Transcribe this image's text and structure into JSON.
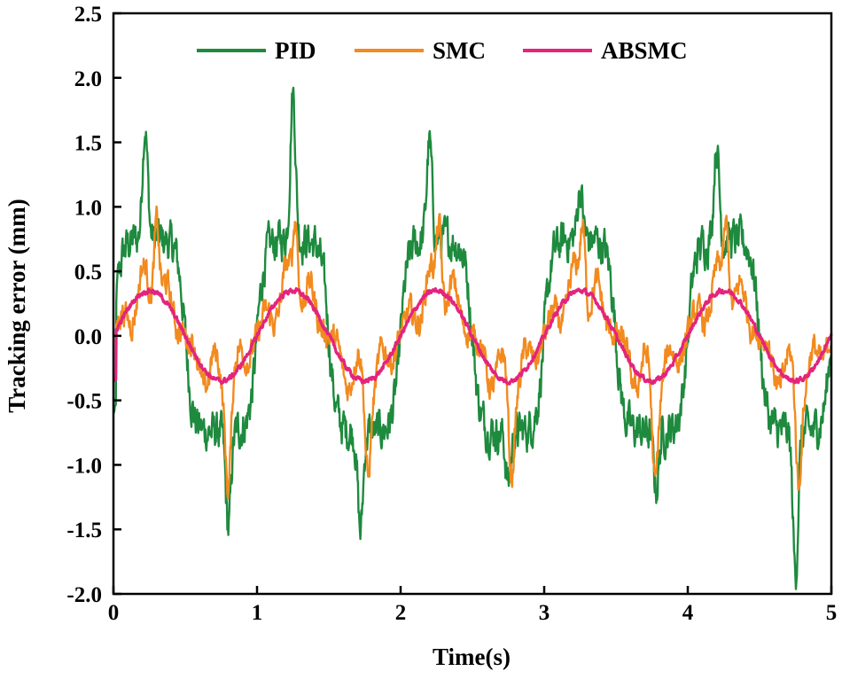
{
  "chart_data": {
    "type": "line",
    "title": "",
    "xlabel": "Time(s)",
    "ylabel": "Tracking error (mm)",
    "xlim": [
      0,
      5
    ],
    "ylim": [
      -2.0,
      2.5
    ],
    "xticks": [
      0,
      1,
      2,
      3,
      4,
      5
    ],
    "xtick_labels": [
      "0",
      "1",
      "2",
      "3",
      "4",
      "5"
    ],
    "yticks": [
      -2.0,
      -1.5,
      -1.0,
      -0.5,
      0.0,
      0.5,
      1.0,
      1.5,
      2.0,
      2.5
    ],
    "ytick_labels": [
      "-2.0",
      "-1.5",
      "-1.0",
      "-0.5",
      "0.0",
      "0.5",
      "1.0",
      "1.5",
      "2.0",
      "2.5"
    ],
    "grid": false,
    "legend_position": "top-center",
    "series": [
      {
        "name": "PID",
        "color": "#1e8a3e",
        "period_s": 1.0,
        "amplitude": 0.75,
        "noise": 0.12,
        "peaks": [
          {
            "t": 0.22,
            "v": 1.65
          },
          {
            "t": 1.25,
            "v": 1.9
          },
          {
            "t": 2.2,
            "v": 1.5
          },
          {
            "t": 3.25,
            "v": 1.15
          },
          {
            "t": 4.2,
            "v": 1.5
          }
        ],
        "troughs": [
          {
            "t": 0.8,
            "v": -1.5
          },
          {
            "t": 1.72,
            "v": -1.53
          },
          {
            "t": 2.75,
            "v": -1.15
          },
          {
            "t": 3.78,
            "v": -1.18
          },
          {
            "t": 4.75,
            "v": -1.85
          }
        ]
      },
      {
        "name": "SMC",
        "color": "#f28a1e",
        "period_s": 1.0,
        "amplitude": 0.35,
        "noise": 0.08,
        "peaks": [
          {
            "t": 0.3,
            "v": 1.1
          },
          {
            "t": 1.27,
            "v": 1.05
          },
          {
            "t": 2.27,
            "v": 1.0
          },
          {
            "t": 3.27,
            "v": 1.0
          },
          {
            "t": 4.27,
            "v": 1.0
          }
        ],
        "troughs": [
          {
            "t": 0.8,
            "v": -1.0
          },
          {
            "t": 1.77,
            "v": -0.95
          },
          {
            "t": 2.77,
            "v": -0.95
          },
          {
            "t": 3.77,
            "v": -1.0
          },
          {
            "t": 4.77,
            "v": -1.0
          }
        ]
      },
      {
        "name": "ABSMC",
        "color": "#e3247d",
        "period_s": 1.0,
        "amplitude": 0.35,
        "noise": 0.015,
        "peaks": [
          {
            "t": 0.27,
            "v": 0.35
          },
          {
            "t": 1.27,
            "v": 0.35
          },
          {
            "t": 2.27,
            "v": 0.35
          },
          {
            "t": 3.27,
            "v": 0.35
          },
          {
            "t": 4.27,
            "v": 0.35
          }
        ],
        "troughs": [
          {
            "t": 0.77,
            "v": -0.35
          },
          {
            "t": 1.77,
            "v": -0.35
          },
          {
            "t": 2.77,
            "v": -0.35
          },
          {
            "t": 3.77,
            "v": -0.35
          },
          {
            "t": 4.77,
            "v": -0.35
          }
        ]
      }
    ]
  }
}
